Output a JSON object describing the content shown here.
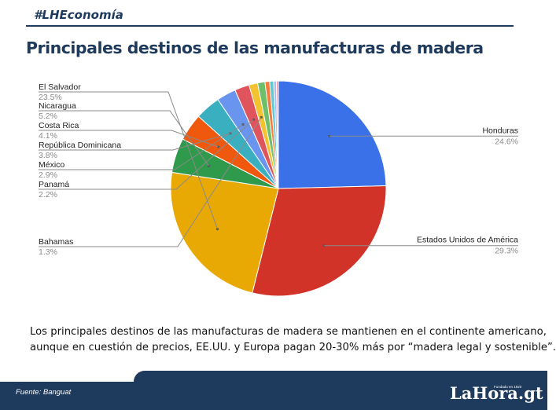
{
  "header": {
    "tag": "#LHEconomía",
    "title": "Principales destinos de las manufacturas de madera"
  },
  "caption": {
    "line1": "Los principales destinos de las manufacturas de madera se mantienen en el continente americano,",
    "line2": "aunque en cuestión de precios, EE.UU. y Europa pagan 20-30% más por “madera legal y sostenible”."
  },
  "footer": {
    "source": "Fuente: Banguat",
    "logo": "LaHora.gt",
    "logo_sub": "Fundado en 1920"
  },
  "chart_data": {
    "type": "pie",
    "title": "",
    "slices": [
      {
        "label": "Honduras",
        "value_label": "24.6%",
        "value": 24.6,
        "color": "#3b71e8"
      },
      {
        "label": "Estados Unidos de América",
        "value_label": "29.3%",
        "value": 29.3,
        "color": "#d23328"
      },
      {
        "label": "El Salvador",
        "value_label": "23.5%",
        "value": 23.5,
        "color": "#e9a905"
      },
      {
        "label": "Nicaragua",
        "value_label": "5.2%",
        "value": 5.2,
        "color": "#2f9a4b"
      },
      {
        "label": "Costa Rica",
        "value_label": "4.1%",
        "value": 4.1,
        "color": "#f0590d"
      },
      {
        "label": "República Dominicana",
        "value_label": "3.8%",
        "value": 3.8,
        "color": "#3aafc0"
      },
      {
        "label": "México",
        "value_label": "2.9%",
        "value": 2.9,
        "color": "#6a95ee"
      },
      {
        "label": "Panamá",
        "value_label": "2.2%",
        "value": 2.2,
        "color": "#e0555d"
      },
      {
        "label": "Bahamas",
        "value_label": "1.3%",
        "value": 1.3,
        "color": "#f2c230"
      },
      {
        "label": "",
        "value_label": "",
        "value": 1.1,
        "color": "#6dbf6b"
      },
      {
        "label": "",
        "value_label": "",
        "value": 0.7,
        "color": "#f57c3a"
      },
      {
        "label": "",
        "value_label": "",
        "value": 0.6,
        "color": "#63c7d4"
      },
      {
        "label": "",
        "value_label": "",
        "value": 0.4,
        "color": "#a5bdf5"
      },
      {
        "label": "",
        "value_label": "",
        "value": 0.3,
        "color": "#f09a94"
      }
    ]
  }
}
